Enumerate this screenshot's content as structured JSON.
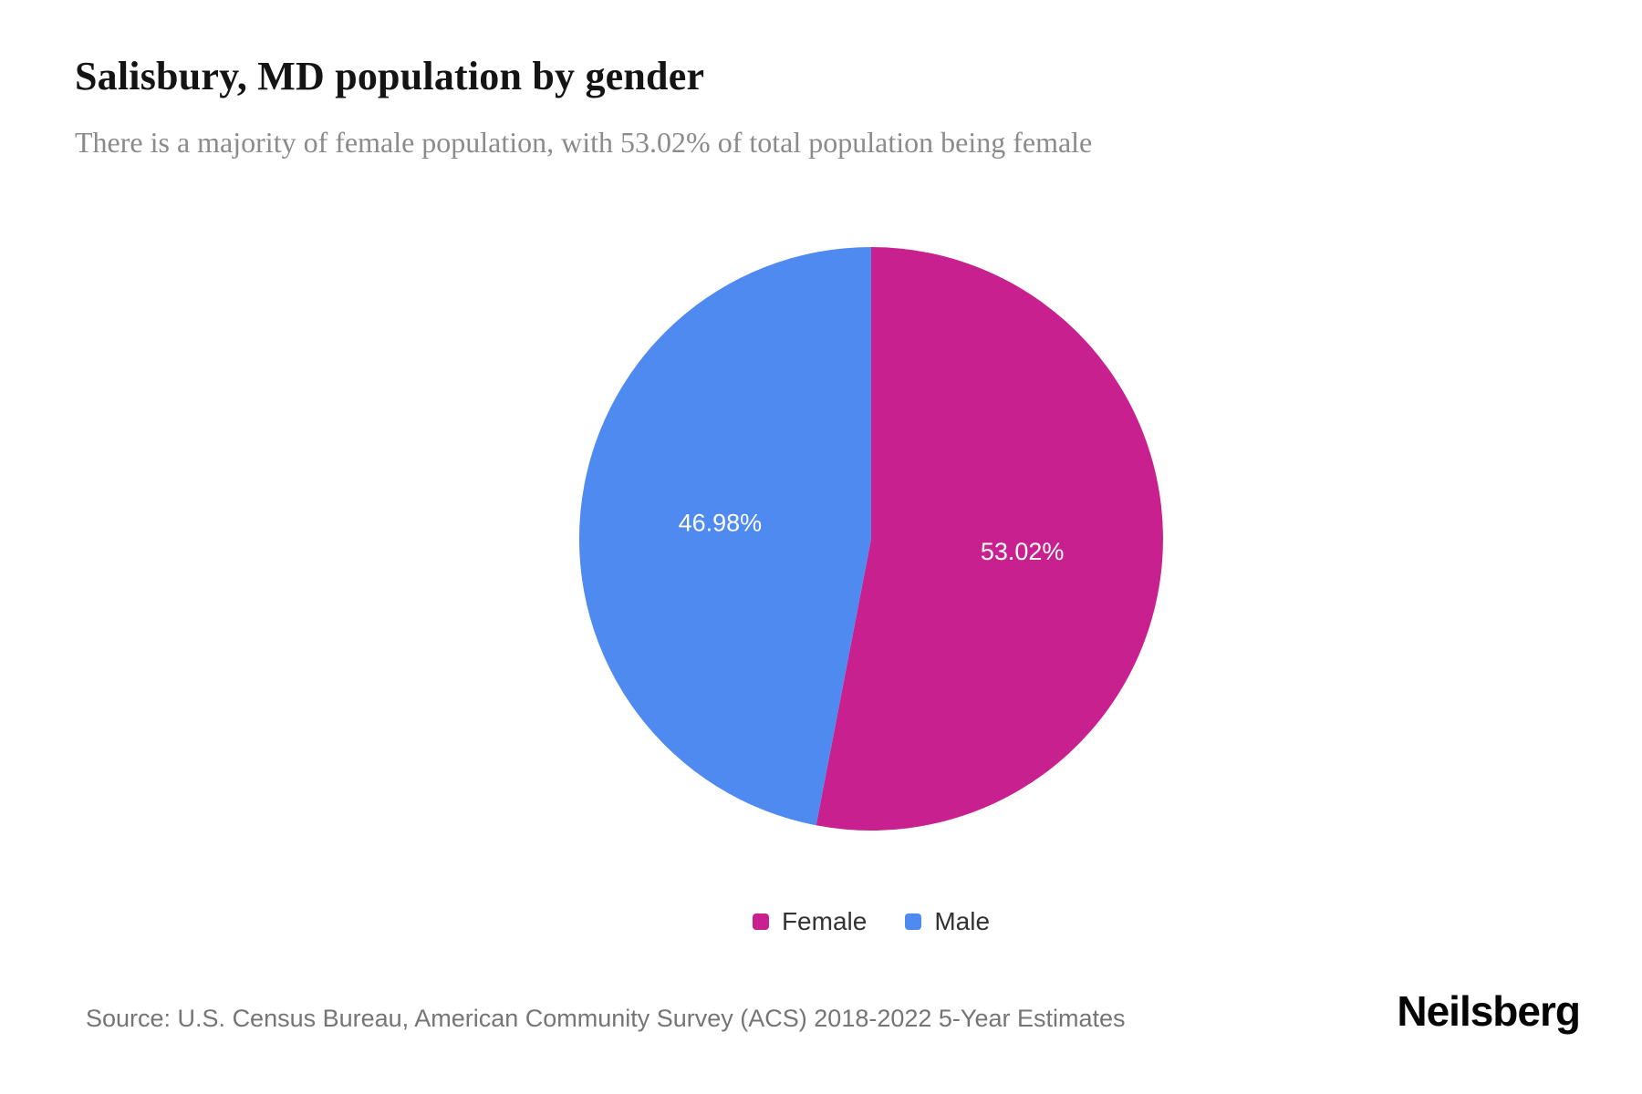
{
  "page": {
    "title": "Salisbury, MD population by gender",
    "subtitle": "There is a majority of female population, with 53.02% of total population being female",
    "source": "Source: U.S. Census Bureau, American Community Survey (ACS) 2018-2022 5-Year Estimates",
    "brand": "Neilsberg"
  },
  "chart_data": {
    "type": "pie",
    "title": "Salisbury, MD population by gender",
    "categories": [
      "Female",
      "Male"
    ],
    "values": [
      53.02,
      46.98
    ],
    "slice_labels": [
      "53.02%",
      "46.98%"
    ],
    "colors": [
      "#c9208f",
      "#4e8af0"
    ],
    "label_color": "#ffffff",
    "start_angle_deg": 0,
    "direction": "clockwise",
    "legend_position": "bottom"
  }
}
